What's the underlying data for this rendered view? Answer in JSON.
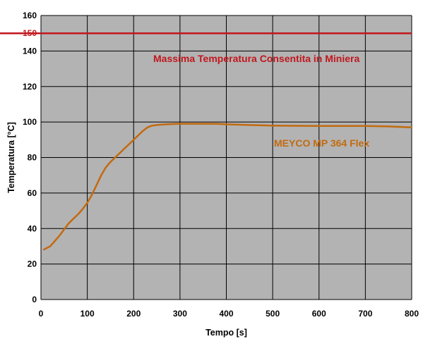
{
  "chart_data": {
    "type": "line",
    "xlabel": "Tempo [s]",
    "ylabel": "Temperatura [°C]",
    "xlim": [
      0,
      800
    ],
    "ylim": [
      0,
      160
    ],
    "xticks": [
      0,
      100,
      200,
      300,
      400,
      500,
      600,
      700,
      800
    ],
    "yticks": [
      0,
      20,
      40,
      60,
      80,
      100,
      120,
      140,
      160
    ],
    "grid": true,
    "legend": "none",
    "reference_lines": [
      {
        "label": "150",
        "y": 150,
        "color": "#c0171d",
        "annotation": "Massima Temperatura Consentita in Miniera"
      }
    ],
    "series": [
      {
        "annotation": "MEYCO MP 364 Flex",
        "color": "#c26a10",
        "x": [
          5,
          20,
          30,
          40,
          50,
          60,
          70,
          80,
          90,
          100,
          110,
          120,
          130,
          140,
          150,
          160,
          170,
          180,
          190,
          200,
          210,
          220,
          230,
          240,
          250,
          270,
          300,
          350,
          380,
          400,
          450,
          500,
          600,
          700,
          750,
          800
        ],
        "y": [
          28,
          30,
          33,
          36,
          39.5,
          43,
          45.5,
          48,
          51,
          54.5,
          59,
          64.5,
          70,
          74.5,
          77.5,
          80,
          82.5,
          85,
          87.5,
          90,
          92.5,
          95,
          97,
          98,
          98.3,
          98.7,
          99,
          99,
          99,
          98.7,
          98.3,
          98,
          97.8,
          97.8,
          97.5,
          97
        ]
      }
    ],
    "colors": {
      "plot_background": "#b3b3b3",
      "grid": "#000000"
    }
  }
}
